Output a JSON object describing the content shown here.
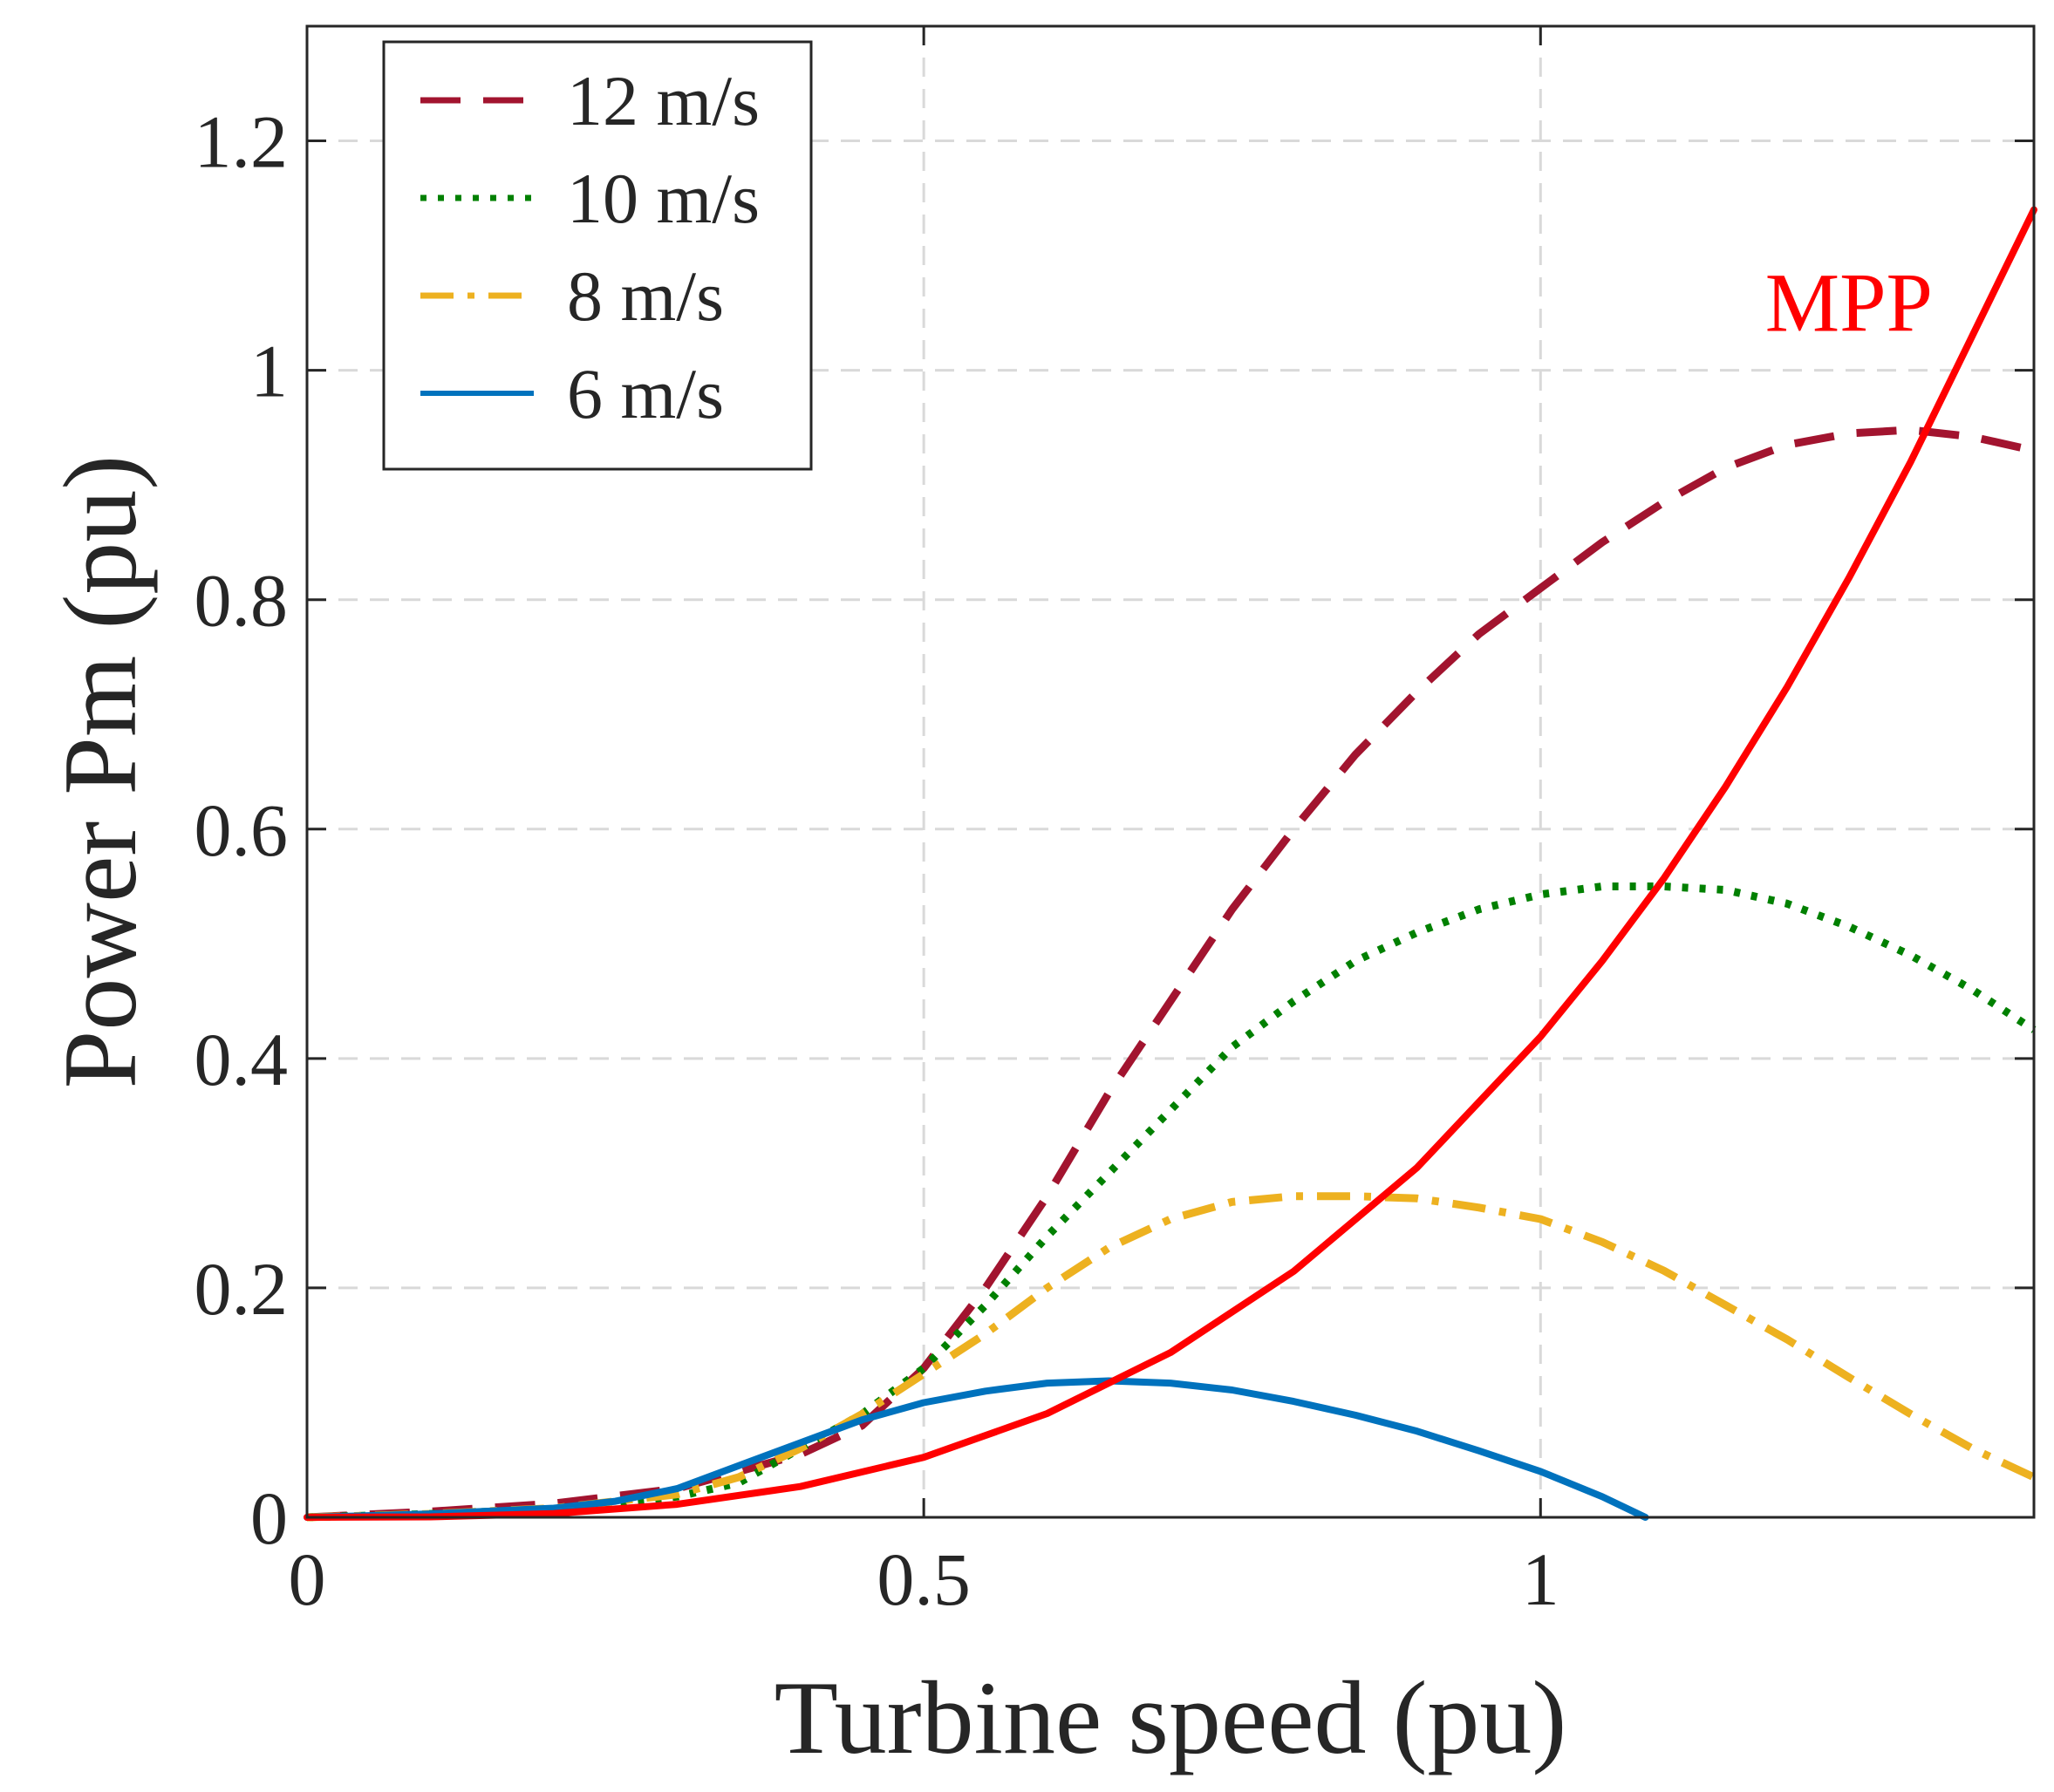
{
  "chart_data": {
    "type": "line",
    "title": "",
    "xlabel": "Turbine speed (pu)",
    "ylabel": "Power Pm (pu)",
    "xlim": [
      0,
      1.4
    ],
    "ylim": [
      0,
      1.3
    ],
    "xticks": [
      0,
      0.5,
      1
    ],
    "xtick_labels": [
      "0",
      "0.5",
      "1"
    ],
    "yticks": [
      0,
      0.2,
      0.4,
      0.6,
      0.8,
      1,
      1.2
    ],
    "ytick_labels": [
      "0",
      "0.2",
      "0.4",
      "0.6",
      "0.8",
      "1",
      "1.2"
    ],
    "grid": true,
    "legend_position": "top-left",
    "annotation": {
      "text": "MPP",
      "x": 1.25,
      "y": 1.06,
      "color": "#ff0000"
    },
    "series": [
      {
        "name": "12 m/s",
        "style": "dashed",
        "color": "#a2142f",
        "x": [
          0,
          0.1,
          0.2,
          0.3,
          0.4,
          0.45,
          0.5,
          0.55,
          0.6,
          0.65,
          0.7,
          0.75,
          0.8,
          0.85,
          0.9,
          0.95,
          1.0,
          1.05,
          1.1,
          1.15,
          1.2,
          1.25,
          1.3,
          1.35,
          1.4
        ],
        "values": [
          0,
          0.005,
          0.012,
          0.025,
          0.055,
          0.08,
          0.13,
          0.2,
          0.28,
          0.37,
          0.45,
          0.53,
          0.6,
          0.665,
          0.72,
          0.77,
          0.81,
          0.85,
          0.885,
          0.915,
          0.935,
          0.945,
          0.948,
          0.942,
          0.93
        ]
      },
      {
        "name": "10 m/s",
        "style": "dotted",
        "color": "#008000",
        "x": [
          0,
          0.1,
          0.2,
          0.3,
          0.35,
          0.4,
          0.45,
          0.5,
          0.55,
          0.6,
          0.65,
          0.7,
          0.75,
          0.8,
          0.85,
          0.9,
          0.95,
          1.0,
          1.05,
          1.1,
          1.15,
          1.2,
          1.25,
          1.3,
          1.35,
          1.4
        ],
        "values": [
          0,
          0.003,
          0.007,
          0.018,
          0.03,
          0.06,
          0.09,
          0.13,
          0.185,
          0.245,
          0.3,
          0.355,
          0.41,
          0.45,
          0.485,
          0.51,
          0.53,
          0.543,
          0.55,
          0.55,
          0.547,
          0.535,
          0.515,
          0.49,
          0.46,
          0.425
        ]
      },
      {
        "name": "8 m/s",
        "style": "dashdot",
        "color": "#edb120",
        "x": [
          0,
          0.1,
          0.2,
          0.3,
          0.35,
          0.4,
          0.45,
          0.5,
          0.55,
          0.6,
          0.65,
          0.7,
          0.75,
          0.8,
          0.85,
          0.9,
          0.95,
          1.0,
          1.05,
          1.1,
          1.15,
          1.2,
          1.25,
          1.3,
          1.35,
          1.4
        ],
        "values": [
          0,
          0.003,
          0.008,
          0.02,
          0.035,
          0.06,
          0.09,
          0.125,
          0.16,
          0.2,
          0.235,
          0.26,
          0.275,
          0.28,
          0.28,
          0.278,
          0.27,
          0.26,
          0.24,
          0.215,
          0.185,
          0.155,
          0.122,
          0.09,
          0.06,
          0.035
        ]
      },
      {
        "name": "6 m/s",
        "style": "solid",
        "color": "#0072bd",
        "x": [
          0,
          0.1,
          0.2,
          0.25,
          0.3,
          0.35,
          0.4,
          0.45,
          0.5,
          0.55,
          0.6,
          0.65,
          0.7,
          0.75,
          0.8,
          0.85,
          0.9,
          0.95,
          1.0,
          1.05,
          1.085
        ],
        "values": [
          0,
          0.003,
          0.008,
          0.014,
          0.025,
          0.045,
          0.065,
          0.085,
          0.1,
          0.11,
          0.117,
          0.119,
          0.117,
          0.111,
          0.101,
          0.089,
          0.075,
          0.058,
          0.04,
          0.018,
          0
        ]
      },
      {
        "name": "MPP",
        "style": "solid",
        "color": "#ff0000",
        "in_legend": false,
        "x": [
          0,
          0.1,
          0.2,
          0.3,
          0.4,
          0.5,
          0.6,
          0.7,
          0.8,
          0.9,
          1.0,
          1.05,
          1.1,
          1.15,
          1.2,
          1.25,
          1.3,
          1.35,
          1.4
        ],
        "values": [
          0,
          0.0004,
          0.0033,
          0.0113,
          0.0268,
          0.0523,
          0.0905,
          0.1436,
          0.2145,
          0.305,
          0.419,
          0.485,
          0.557,
          0.637,
          0.724,
          0.819,
          0.92,
          1.03,
          1.14
        ]
      }
    ]
  }
}
